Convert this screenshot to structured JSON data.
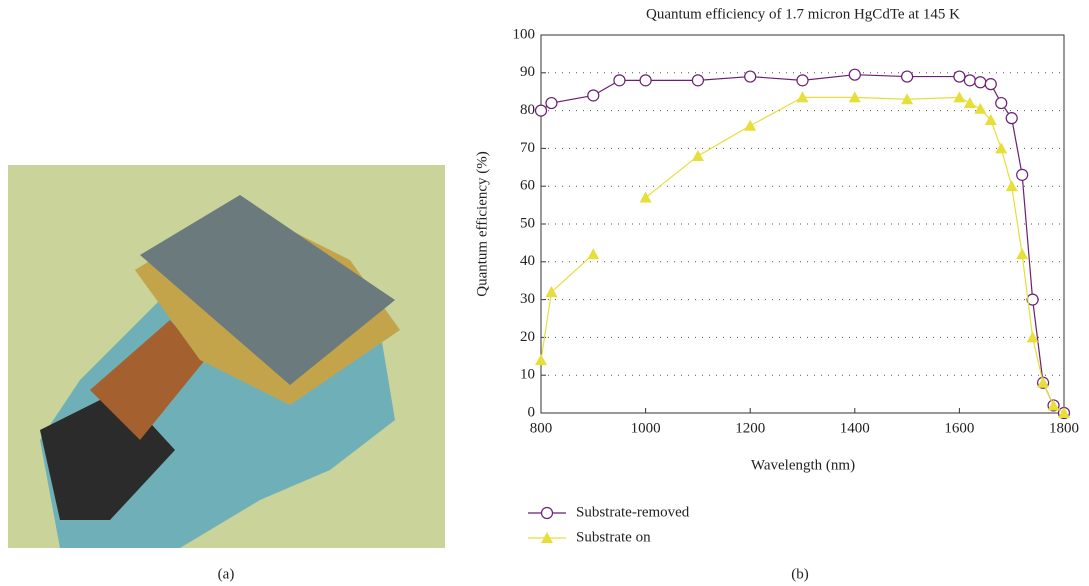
{
  "captions": [
    "(a)",
    "(b)"
  ],
  "chart_data": {
    "type": "line",
    "title": "Quantum efficiency of 1.7 micron HgCdTe at 145 K",
    "x_label": "Wavelength (nm)",
    "y_label": "Quantum efficiency (%)",
    "x": [
      800,
      820,
      900,
      950,
      1000,
      1100,
      1200,
      1300,
      1400,
      1500,
      1600,
      1620,
      1640,
      1660,
      1680,
      1700,
      1720,
      1740,
      1760,
      1780,
      1800
    ],
    "series": [
      {
        "name": "Substrate-removed",
        "color": "#6b1f72",
        "marker": "circle",
        "values": [
          80,
          82,
          84,
          88,
          88,
          88,
          89,
          88,
          89.5,
          89,
          89,
          88,
          87.5,
          87,
          82,
          78,
          63,
          30,
          8,
          2,
          0
        ]
      },
      {
        "name": "Substrate on",
        "color": "#e6df3a",
        "marker": "triangle",
        "values": [
          14,
          32,
          42,
          null,
          57,
          68,
          76,
          83.5,
          83.5,
          83,
          83.5,
          82,
          80.5,
          77.5,
          70,
          60,
          42,
          20,
          8,
          2,
          0
        ]
      }
    ],
    "xlim": [
      800,
      1800
    ],
    "ylim": [
      0,
      100
    ],
    "xticks": [
      800,
      1000,
      1200,
      1400,
      1600,
      1800
    ],
    "yticks": [
      0,
      10,
      20,
      30,
      40,
      50,
      60,
      70,
      80,
      90,
      100
    ],
    "grid": true
  }
}
